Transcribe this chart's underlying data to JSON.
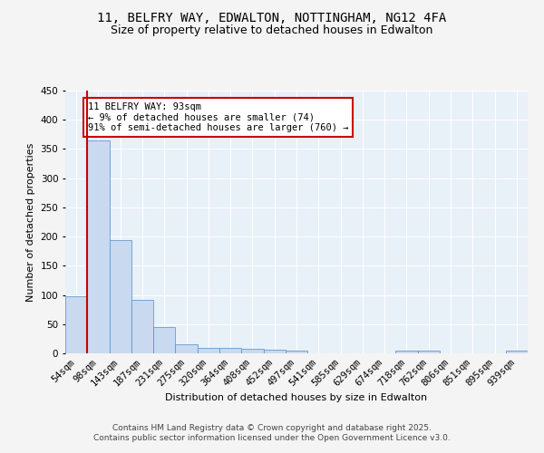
{
  "title": "11, BELFRY WAY, EDWALTON, NOTTINGHAM, NG12 4FA",
  "subtitle": "Size of property relative to detached houses in Edwalton",
  "xlabel": "Distribution of detached houses by size in Edwalton",
  "ylabel": "Number of detached properties",
  "categories": [
    "54sqm",
    "98sqm",
    "143sqm",
    "187sqm",
    "231sqm",
    "275sqm",
    "320sqm",
    "364sqm",
    "408sqm",
    "452sqm",
    "497sqm",
    "541sqm",
    "585sqm",
    "629sqm",
    "674sqm",
    "718sqm",
    "762sqm",
    "806sqm",
    "851sqm",
    "895sqm",
    "939sqm"
  ],
  "values": [
    97,
    365,
    194,
    92,
    45,
    15,
    10,
    10,
    7,
    6,
    5,
    0,
    0,
    0,
    0,
    5,
    4,
    0,
    0,
    0,
    4
  ],
  "bar_color": "#c9d9f0",
  "bar_edge_color": "#6699cc",
  "vline_color": "#cc0000",
  "ylim": [
    0,
    450
  ],
  "yticks": [
    0,
    50,
    100,
    150,
    200,
    250,
    300,
    350,
    400,
    450
  ],
  "annotation_text": "11 BELFRY WAY: 93sqm\n← 9% of detached houses are smaller (74)\n91% of semi-detached houses are larger (760) →",
  "annotation_box_color": "#ffffff",
  "annotation_box_edge": "#cc0000",
  "bg_color": "#e8f0f8",
  "fig_bg_color": "#f4f4f4",
  "footer_text": "Contains HM Land Registry data © Crown copyright and database right 2025.\nContains public sector information licensed under the Open Government Licence v3.0.",
  "title_fontsize": 10,
  "subtitle_fontsize": 9,
  "axis_label_fontsize": 8,
  "tick_fontsize": 7.5,
  "annotation_fontsize": 7.5,
  "footer_fontsize": 6.5
}
